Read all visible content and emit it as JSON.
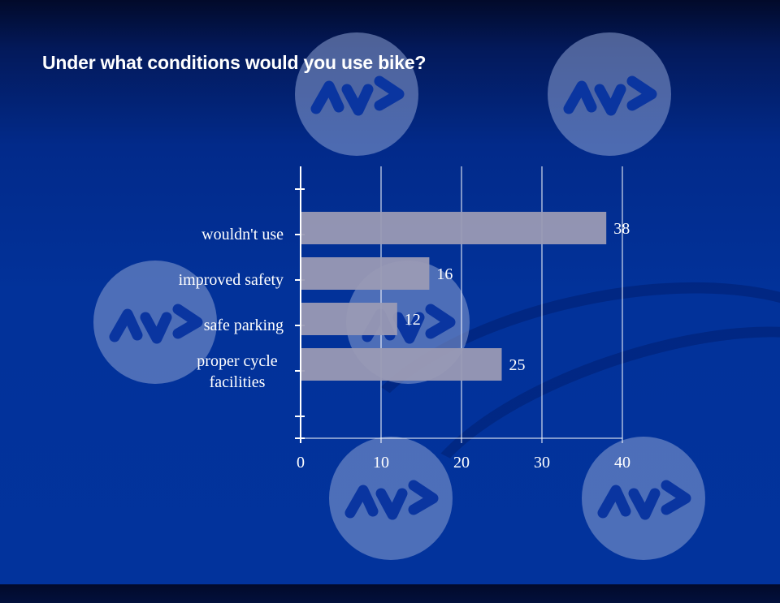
{
  "slide": {
    "title": "Under what conditions would you use bike?",
    "logo_icon": "av-logo-icon",
    "colors": {
      "background": "#02339c",
      "bar": "#9a9ab4",
      "text": "#ffffff",
      "logo_circle": "#6b80bf",
      "logo_mark": "#0a35a0"
    }
  },
  "chart_data": {
    "type": "bar",
    "orientation": "horizontal",
    "title": "Under what conditions would you use bike?",
    "categories": [
      "wouldn't use",
      "improved safety",
      "safe parking",
      "proper cycle facilities"
    ],
    "category_lines": [
      [
        "wouldn't use"
      ],
      [
        "improved safety"
      ],
      [
        "safe parking"
      ],
      [
        "proper cycle",
        "facilities"
      ]
    ],
    "values": [
      38,
      16,
      12,
      25
    ],
    "data_labels": [
      "38",
      "16",
      "12",
      "25"
    ],
    "xlabel": "",
    "ylabel": "",
    "xlim": [
      0,
      40
    ],
    "xticks": [
      0,
      10,
      20,
      30,
      40
    ],
    "xtick_labels": [
      "0",
      "10",
      "20",
      "30",
      "40"
    ],
    "grid": "vertical",
    "legend": "none"
  }
}
